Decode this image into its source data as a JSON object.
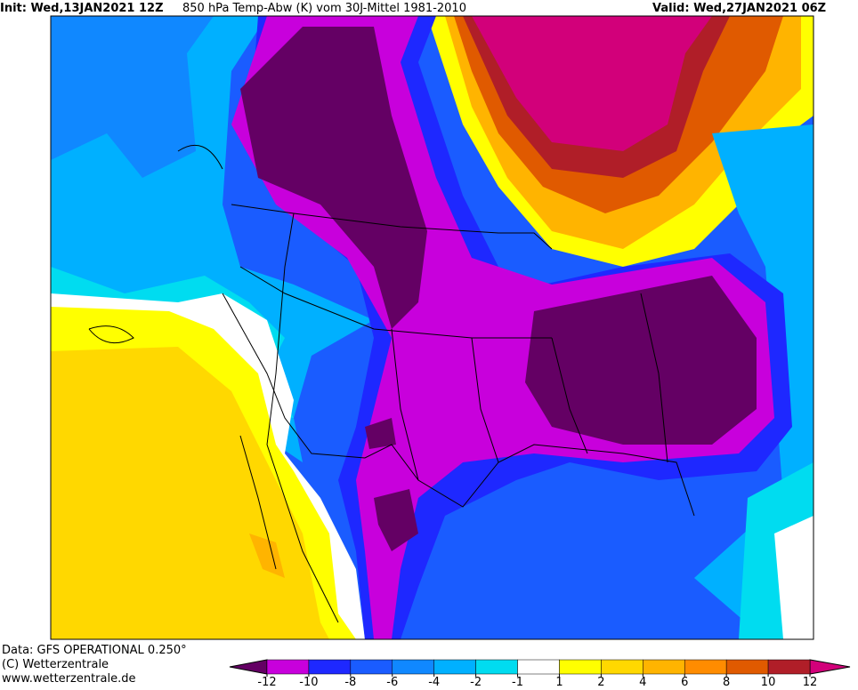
{
  "header": {
    "init": "Init: Wed,13JAN2021 12Z",
    "title": "850 hPa Temp-Abw (K) vom 30J-Mittel 1981-2010",
    "valid": "Valid: Wed,27JAN2021 06Z"
  },
  "footer": {
    "data": "Data: GFS OPERATIONAL 0.250°",
    "copyright": "(C) Wetterzentrale",
    "url": "www.wetterzentrale.de"
  },
  "colorbar": {
    "ticks": [
      -12,
      -10,
      -8,
      -6,
      -4,
      -2,
      -1,
      1,
      2,
      4,
      6,
      8,
      10,
      12
    ],
    "colors": [
      "#c800dc",
      "#1e28ff",
      "#1a5cff",
      "#1088ff",
      "#00b0ff",
      "#00dcf0",
      "#ffffff",
      "#ffff00",
      "#ffd800",
      "#ffb400",
      "#ff8c00",
      "#e05a00",
      "#b01e28"
    ],
    "under_color": "#640064",
    "over_color": "#d2007a"
  }
}
